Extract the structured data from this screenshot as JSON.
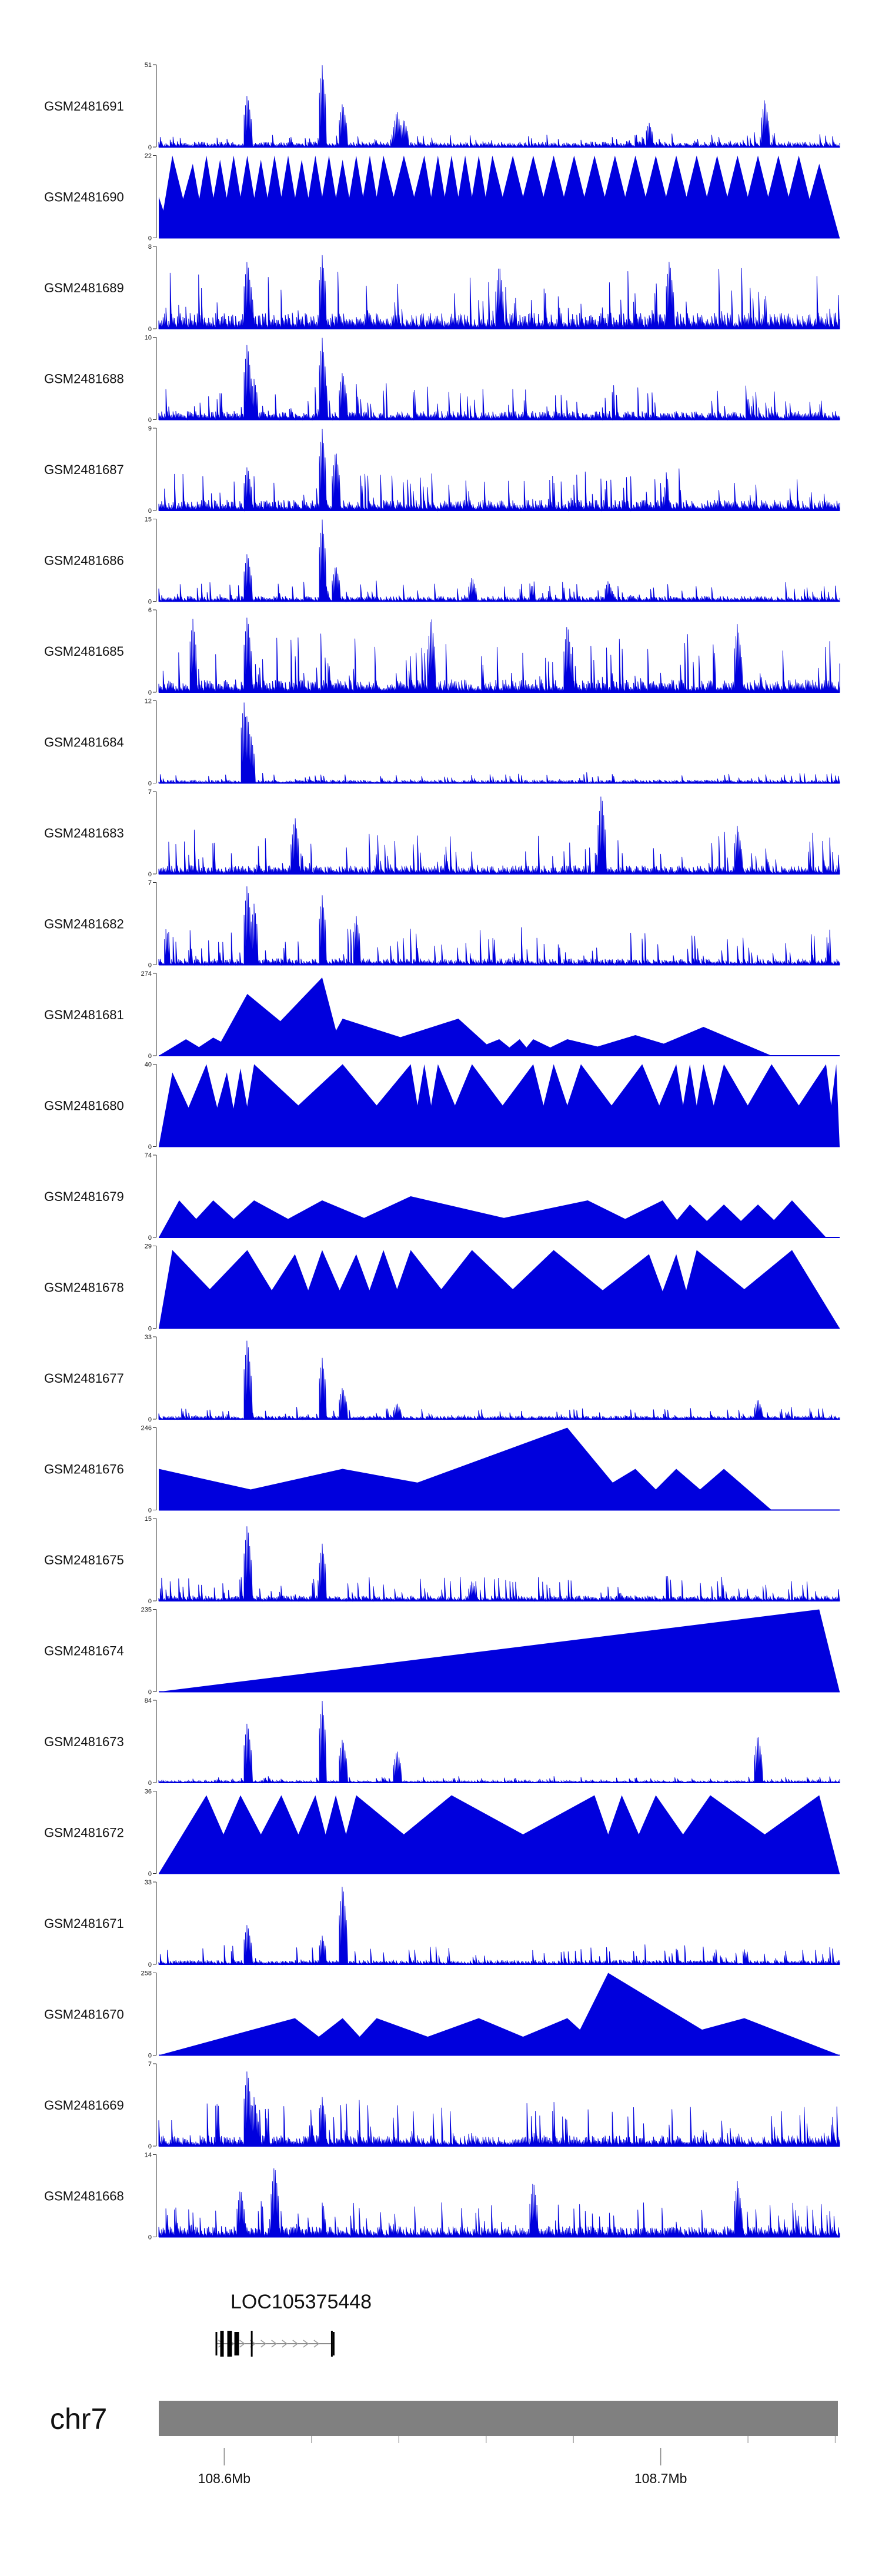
{
  "chart_data": {
    "type": "area",
    "description_free": true,
    "color": "#0000dd",
    "x_range": [
      108.585,
      108.741
    ],
    "tracks": [
      {
        "name": "GSM2481691",
        "ymax": 51,
        "style": "noise",
        "seed": 11,
        "base": 0.05,
        "noiseAmp": 0.12,
        "spikes": [
          [
            0.13,
            0.65
          ],
          [
            0.24,
            1.0
          ],
          [
            0.27,
            0.55
          ],
          [
            0.35,
            0.45
          ],
          [
            0.36,
            0.35
          ],
          [
            0.72,
            0.3
          ],
          [
            0.89,
            0.6
          ]
        ]
      },
      {
        "name": "GSM2481690",
        "ymax": 22,
        "style": "tri",
        "peaks": [
          [
            0.0,
            0.5
          ],
          [
            0.02,
            1.0
          ],
          [
            0.05,
            0.9
          ],
          [
            0.07,
            1.0
          ],
          [
            0.09,
            0.95
          ],
          [
            0.11,
            1.0
          ],
          [
            0.13,
            1.0
          ],
          [
            0.15,
            0.95
          ],
          [
            0.17,
            1.0
          ],
          [
            0.19,
            1.0
          ],
          [
            0.21,
            0.95
          ],
          [
            0.23,
            1.0
          ],
          [
            0.25,
            1.0
          ],
          [
            0.27,
            0.95
          ],
          [
            0.29,
            1.0
          ],
          [
            0.31,
            1.0
          ],
          [
            0.33,
            1.0
          ],
          [
            0.36,
            1.0
          ],
          [
            0.39,
            1.0
          ],
          [
            0.41,
            1.0
          ],
          [
            0.43,
            1.0
          ],
          [
            0.45,
            1.0
          ],
          [
            0.47,
            1.0
          ],
          [
            0.49,
            1.0
          ],
          [
            0.52,
            1.0
          ],
          [
            0.55,
            1.0
          ],
          [
            0.58,
            1.0
          ],
          [
            0.61,
            1.0
          ],
          [
            0.64,
            1.0
          ],
          [
            0.67,
            1.0
          ],
          [
            0.7,
            1.0
          ],
          [
            0.73,
            1.0
          ],
          [
            0.76,
            1.0
          ],
          [
            0.79,
            1.0
          ],
          [
            0.82,
            1.0
          ],
          [
            0.85,
            1.0
          ],
          [
            0.88,
            1.0
          ],
          [
            0.91,
            1.0
          ],
          [
            0.94,
            1.0
          ],
          [
            0.97,
            0.9
          ]
        ]
      },
      {
        "name": "GSM2481689",
        "ymax": 8,
        "style": "noise",
        "seed": 23,
        "base": 0.15,
        "noiseAmp": 0.55,
        "spikes": [
          [
            0.13,
            0.85
          ],
          [
            0.24,
            0.9
          ],
          [
            0.5,
            0.8
          ],
          [
            0.75,
            0.85
          ]
        ]
      },
      {
        "name": "GSM2481688",
        "ymax": 10,
        "style": "noise",
        "seed": 37,
        "base": 0.08,
        "noiseAmp": 0.35,
        "spikes": [
          [
            0.13,
            0.95
          ],
          [
            0.24,
            1.0
          ],
          [
            0.27,
            0.6
          ],
          [
            0.14,
            0.5
          ]
        ]
      },
      {
        "name": "GSM2481687",
        "ymax": 9,
        "style": "noise",
        "seed": 41,
        "base": 0.1,
        "noiseAmp": 0.4,
        "spikes": [
          [
            0.24,
            1.0
          ],
          [
            0.26,
            0.75
          ],
          [
            0.13,
            0.55
          ]
        ]
      },
      {
        "name": "GSM2481686",
        "ymax": 15,
        "style": "noise",
        "seed": 53,
        "base": 0.05,
        "noiseAmp": 0.2,
        "spikes": [
          [
            0.13,
            0.6
          ],
          [
            0.24,
            1.0
          ],
          [
            0.26,
            0.45
          ],
          [
            0.46,
            0.3
          ],
          [
            0.66,
            0.25
          ]
        ]
      },
      {
        "name": "GSM2481685",
        "ymax": 6,
        "style": "noise",
        "seed": 61,
        "base": 0.12,
        "noiseAmp": 0.6,
        "spikes": [
          [
            0.05,
            0.9
          ],
          [
            0.13,
            0.95
          ],
          [
            0.4,
            0.95
          ],
          [
            0.6,
            0.85
          ],
          [
            0.85,
            0.85
          ]
        ]
      },
      {
        "name": "GSM2481684",
        "ymax": 12,
        "style": "noise",
        "seed": 71,
        "base": 0.03,
        "noiseAmp": 0.1,
        "spikes": [
          [
            0.125,
            1.0
          ],
          [
            0.13,
            0.85
          ],
          [
            0.135,
            0.6
          ]
        ]
      },
      {
        "name": "GSM2481683",
        "ymax": 7,
        "style": "noise",
        "seed": 83,
        "base": 0.08,
        "noiseAmp": 0.45,
        "spikes": [
          [
            0.65,
            1.0
          ],
          [
            0.2,
            0.7
          ],
          [
            0.85,
            0.6
          ]
        ]
      },
      {
        "name": "GSM2481682",
        "ymax": 7,
        "style": "noise",
        "seed": 97,
        "base": 0.06,
        "noiseAmp": 0.4,
        "spikes": [
          [
            0.13,
            1.0
          ],
          [
            0.14,
            0.75
          ],
          [
            0.24,
            0.85
          ],
          [
            0.29,
            0.6
          ]
        ]
      },
      {
        "name": "GSM2481681",
        "ymax": 274,
        "style": "tri",
        "peaks": [
          [
            0.04,
            0.2
          ],
          [
            0.08,
            0.22
          ],
          [
            0.13,
            0.75
          ],
          [
            0.24,
            0.95
          ],
          [
            0.27,
            0.45
          ],
          [
            0.44,
            0.45
          ],
          [
            0.5,
            0.2
          ],
          [
            0.53,
            0.2
          ],
          [
            0.55,
            0.2
          ],
          [
            0.6,
            0.2
          ],
          [
            0.7,
            0.25
          ],
          [
            0.8,
            0.35
          ]
        ]
      },
      {
        "name": "GSM2481680",
        "ymax": 40,
        "style": "tri",
        "peaks": [
          [
            0.02,
            0.9
          ],
          [
            0.07,
            1.0
          ],
          [
            0.1,
            0.9
          ],
          [
            0.12,
            0.95
          ],
          [
            0.14,
            1.0
          ],
          [
            0.27,
            1.0
          ],
          [
            0.37,
            1.0
          ],
          [
            0.39,
            1.0
          ],
          [
            0.41,
            1.0
          ],
          [
            0.46,
            1.0
          ],
          [
            0.55,
            1.0
          ],
          [
            0.58,
            1.0
          ],
          [
            0.62,
            1.0
          ],
          [
            0.71,
            1.0
          ],
          [
            0.76,
            1.0
          ],
          [
            0.78,
            1.0
          ],
          [
            0.8,
            1.0
          ],
          [
            0.83,
            1.0
          ],
          [
            0.9,
            1.0
          ],
          [
            0.98,
            1.0
          ],
          [
            0.995,
            1.0
          ]
        ]
      },
      {
        "name": "GSM2481679",
        "ymax": 74,
        "style": "tri",
        "peaks": [
          [
            0.03,
            0.45
          ],
          [
            0.08,
            0.45
          ],
          [
            0.14,
            0.45
          ],
          [
            0.24,
            0.45
          ],
          [
            0.37,
            0.5
          ],
          [
            0.63,
            0.45
          ],
          [
            0.74,
            0.45
          ],
          [
            0.78,
            0.4
          ],
          [
            0.83,
            0.4
          ],
          [
            0.88,
            0.4
          ],
          [
            0.93,
            0.45
          ]
        ]
      },
      {
        "name": "GSM2481678",
        "ymax": 29,
        "style": "tri",
        "peaks": [
          [
            0.02,
            0.95
          ],
          [
            0.13,
            0.95
          ],
          [
            0.2,
            0.9
          ],
          [
            0.24,
            0.95
          ],
          [
            0.29,
            0.9
          ],
          [
            0.33,
            0.95
          ],
          [
            0.37,
            0.95
          ],
          [
            0.46,
            0.95
          ],
          [
            0.58,
            0.95
          ],
          [
            0.72,
            0.9
          ],
          [
            0.76,
            0.9
          ],
          [
            0.79,
            0.95
          ],
          [
            0.93,
            0.95
          ]
        ]
      },
      {
        "name": "GSM2481677",
        "ymax": 33,
        "style": "noise",
        "seed": 109,
        "base": 0.03,
        "noiseAmp": 0.12,
        "spikes": [
          [
            0.13,
            1.0
          ],
          [
            0.24,
            0.75
          ],
          [
            0.27,
            0.4
          ],
          [
            0.35,
            0.2
          ],
          [
            0.88,
            0.25
          ]
        ]
      },
      {
        "name": "GSM2481676",
        "ymax": 246,
        "style": "tri",
        "peaks": [
          [
            0.0,
            0.5
          ],
          [
            0.27,
            0.5
          ],
          [
            0.6,
            1.0
          ],
          [
            0.7,
            0.5
          ],
          [
            0.76,
            0.5
          ],
          [
            0.83,
            0.5
          ]
        ]
      },
      {
        "name": "GSM2481675",
        "ymax": 15,
        "style": "noise",
        "seed": 127,
        "base": 0.05,
        "noiseAmp": 0.25,
        "spikes": [
          [
            0.13,
            0.95
          ],
          [
            0.24,
            0.7
          ],
          [
            0.46,
            0.25
          ]
        ]
      },
      {
        "name": "GSM2481674",
        "ymax": 235,
        "style": "tri",
        "peaks": [
          [
            0.97,
            1.0
          ]
        ]
      },
      {
        "name": "GSM2481673",
        "ymax": 84,
        "style": "noise",
        "seed": 139,
        "base": 0.02,
        "noiseAmp": 0.06,
        "spikes": [
          [
            0.13,
            0.75
          ],
          [
            0.24,
            1.0
          ],
          [
            0.27,
            0.55
          ],
          [
            0.35,
            0.4
          ],
          [
            0.88,
            0.6
          ]
        ]
      },
      {
        "name": "GSM2481672",
        "ymax": 36,
        "style": "tri",
        "peaks": [
          [
            0.07,
            0.95
          ],
          [
            0.12,
            0.95
          ],
          [
            0.18,
            0.95
          ],
          [
            0.23,
            0.95
          ],
          [
            0.26,
            0.95
          ],
          [
            0.29,
            0.95
          ],
          [
            0.43,
            0.95
          ],
          [
            0.64,
            0.95
          ],
          [
            0.68,
            0.95
          ],
          [
            0.73,
            0.95
          ],
          [
            0.81,
            0.95
          ],
          [
            0.97,
            0.95
          ]
        ]
      },
      {
        "name": "GSM2481671",
        "ymax": 33,
        "style": "noise",
        "seed": 151,
        "base": 0.04,
        "noiseAmp": 0.2,
        "spikes": [
          [
            0.13,
            0.5
          ],
          [
            0.27,
            1.0
          ],
          [
            0.24,
            0.35
          ]
        ]
      },
      {
        "name": "GSM2481670",
        "ymax": 258,
        "style": "tri",
        "peaks": [
          [
            0.2,
            0.45
          ],
          [
            0.27,
            0.45
          ],
          [
            0.32,
            0.45
          ],
          [
            0.47,
            0.45
          ],
          [
            0.6,
            0.45
          ],
          [
            0.66,
            1.0
          ],
          [
            0.86,
            0.45
          ]
        ]
      },
      {
        "name": "GSM2481669",
        "ymax": 7,
        "style": "noise",
        "seed": 163,
        "base": 0.1,
        "noiseAmp": 0.45,
        "spikes": [
          [
            0.13,
            0.95
          ],
          [
            0.14,
            0.6
          ],
          [
            0.24,
            0.6
          ]
        ]
      },
      {
        "name": "GSM2481668",
        "ymax": 14,
        "style": "noise",
        "seed": 179,
        "base": 0.1,
        "noiseAmp": 0.35,
        "spikes": [
          [
            0.17,
            0.9
          ],
          [
            0.12,
            0.6
          ],
          [
            0.55,
            0.7
          ],
          [
            0.85,
            0.7
          ]
        ]
      }
    ],
    "gene": {
      "name": "LOC105375448",
      "start": 108.598,
      "end": 108.625
    },
    "chromosome": "chr7",
    "axis_ticks": [
      {
        "value": 108.6,
        "label": "108.6Mb"
      },
      {
        "value": 108.7,
        "label": "108.7Mb"
      }
    ],
    "minor_ticks": [
      108.62,
      108.64,
      108.66,
      108.68,
      108.72,
      108.74
    ],
    "y_min_label": "0"
  }
}
